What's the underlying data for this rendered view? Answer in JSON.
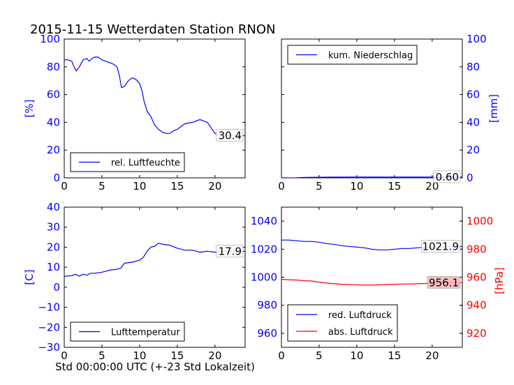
{
  "figure": {
    "title": "2015-11-15 Wetterdaten Station RNON",
    "xlabel": "Std 00:00:00 UTC (+-23 Std Lokalzeit)"
  },
  "chart_data": [
    {
      "type": "line",
      "panel": "top-left",
      "ylabel": "[%]",
      "ylabel_color": "#0000ff",
      "xlim": [
        0,
        24
      ],
      "ylim": [
        0,
        100
      ],
      "xticks": [
        0,
        5,
        10,
        15,
        20
      ],
      "yticks": [
        0,
        20,
        40,
        60,
        80,
        100
      ],
      "legend_loc": "lower-left",
      "series": [
        {
          "name": "rel. Luftfeuchte",
          "color": "#0000ff",
          "x": [
            0,
            0.5,
            1,
            1.3,
            1.6,
            2,
            2.5,
            3,
            3.3,
            3.7,
            4,
            4.5,
            5,
            5.5,
            6,
            6.5,
            7,
            7.3,
            7.6,
            8,
            8.5,
            9,
            9.5,
            10,
            10.3,
            10.6,
            11,
            11.5,
            12,
            12.5,
            13,
            13.5,
            14,
            14.5,
            15,
            15.5,
            16,
            17,
            18,
            19,
            19.5,
            20,
            20.5,
            21,
            22,
            23,
            24
          ],
          "y": [
            85,
            85,
            84,
            80,
            77,
            80,
            85,
            86,
            84,
            86,
            87,
            87,
            85,
            84,
            83,
            82,
            80,
            74,
            65,
            66,
            70,
            72,
            71,
            68,
            63,
            55,
            48,
            44,
            38,
            35,
            33,
            32,
            32,
            34,
            35,
            37,
            39,
            40,
            42,
            40,
            36,
            32,
            31,
            31,
            30.5,
            30.4,
            30.4
          ]
        }
      ],
      "end_label": "30.4",
      "end_value": 30.4
    },
    {
      "type": "line",
      "panel": "top-right",
      "ylabel": "[mm]",
      "ylabel_color": "#0000ff",
      "xlim": [
        0,
        24
      ],
      "ylim": [
        0,
        100
      ],
      "xticks": [
        0,
        5,
        10,
        15,
        20
      ],
      "yticks": [
        0,
        20,
        40,
        60,
        80,
        100
      ],
      "legend_loc": "upper-left",
      "series": [
        {
          "name": "kum. Niederschlag",
          "color": "#0000ff",
          "x": [
            0,
            2,
            3,
            6,
            10,
            24
          ],
          "y": [
            0,
            0.1,
            0.3,
            0.5,
            0.6,
            0.6
          ]
        }
      ],
      "end_label": "0.60",
      "end_value": 0.6
    },
    {
      "type": "line",
      "panel": "bottom-left",
      "ylabel": "[C]",
      "ylabel_color": "#0000ff",
      "xlim": [
        0,
        24
      ],
      "ylim": [
        -30,
        40
      ],
      "xticks": [
        0,
        5,
        10,
        15,
        20
      ],
      "yticks": [
        -30,
        -20,
        -10,
        0,
        10,
        20,
        30,
        40
      ],
      "legend_loc": "lower-left",
      "series": [
        {
          "name": "Lufttemperatur",
          "color": "#0000ff",
          "x": [
            0,
            1,
            1.5,
            2,
            2.5,
            3,
            3.5,
            4,
            5,
            5.5,
            6,
            7,
            7.5,
            8,
            9,
            10,
            10.5,
            11,
            11.5,
            12,
            12.5,
            13,
            14,
            15,
            16,
            17,
            18,
            19,
            20,
            21,
            22,
            23,
            24
          ],
          "y": [
            5.5,
            5.8,
            6.5,
            5.5,
            6.5,
            6,
            7,
            7,
            7.5,
            8,
            8.5,
            9,
            9.5,
            12,
            12.5,
            13.5,
            15,
            18,
            20,
            20.5,
            22,
            21.5,
            21,
            19.5,
            18.5,
            18.5,
            17.5,
            18,
            17.5,
            18,
            18,
            18,
            17.9
          ]
        }
      ],
      "end_label": "17.9",
      "end_value": 17.9
    },
    {
      "type": "line",
      "panel": "bottom-right",
      "ylabel_right": "[hPa]",
      "ylabel_color": "#ff0000",
      "xlim": [
        0,
        24
      ],
      "ylim_left": [
        950,
        1050
      ],
      "ylim_right": [
        910,
        1010
      ],
      "xticks": [
        0,
        5,
        10,
        15,
        20
      ],
      "yticks_left": [
        960,
        980,
        1000,
        1020,
        1040
      ],
      "yticks_right": [
        920,
        940,
        960,
        980,
        1000
      ],
      "left_tick_color": "#0000ff",
      "right_tick_color": "#ff0000",
      "legend_loc": "lower-left",
      "series": [
        {
          "name": "red. Luftdruck",
          "color": "#0000ff",
          "axis": "left",
          "x": [
            0,
            1,
            2,
            3,
            4,
            5,
            6,
            7,
            8,
            9,
            10,
            11,
            12,
            13,
            14,
            15,
            16,
            17,
            18,
            19,
            20,
            21,
            22,
            23,
            24
          ],
          "y": [
            1026.5,
            1026.5,
            1026,
            1025.5,
            1025.5,
            1025,
            1024,
            1023.5,
            1022.5,
            1022,
            1021.5,
            1021,
            1020,
            1019.5,
            1019.5,
            1020,
            1020.5,
            1020.5,
            1021,
            1021.3,
            1021.5,
            1021.6,
            1021.8,
            1021.9,
            1021.9
          ]
        },
        {
          "name": "abs. Luftdruck",
          "color": "#ff0000",
          "axis": "right",
          "x": [
            0,
            1,
            2,
            3,
            4,
            5,
            6,
            7,
            8,
            9,
            10,
            11,
            12,
            13,
            14,
            15,
            16,
            17,
            18,
            19,
            20,
            21,
            22,
            23,
            24
          ],
          "y": [
            958.5,
            958.2,
            958,
            957.5,
            957.3,
            956.5,
            955.8,
            955.3,
            955,
            954.8,
            954.6,
            954.5,
            954.5,
            954.6,
            954.8,
            955,
            955.1,
            955.2,
            955.3,
            955.5,
            955.7,
            955.9,
            956,
            956.1,
            956.1
          ]
        }
      ],
      "end_labels": [
        {
          "text": "1021.9",
          "value": 1021.9,
          "axis": "left",
          "bg": "#ffffff"
        },
        {
          "text": "956.1",
          "value": 956.1,
          "axis": "right",
          "bg": "#f4b6b6"
        }
      ]
    }
  ]
}
